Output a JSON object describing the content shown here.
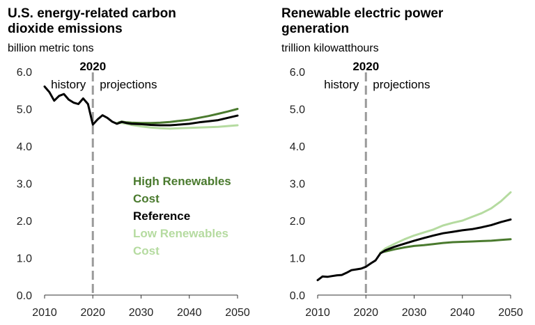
{
  "chart_data": [
    {
      "type": "line",
      "title": "U.S. energy-related carbon dioxide emissions",
      "title_lines": [
        "U.S. energy-related carbon",
        "dioxide emissions"
      ],
      "ylabel": "billion metric tons",
      "xlim": [
        2010,
        2050
      ],
      "ylim": [
        0,
        6
      ],
      "yticks": [
        "0.0",
        "1.0",
        "2.0",
        "3.0",
        "4.0",
        "5.0",
        "6.0"
      ],
      "xticks": [
        "2010",
        "2020",
        "2030",
        "2040",
        "2050"
      ],
      "marker_year": "2020",
      "marker_x": 2020,
      "history_label": "history",
      "projection_label": "projections",
      "legend": [
        {
          "lines": [
            "High Renewables",
            "Cost"
          ],
          "color": "#4a7a2e"
        },
        {
          "lines": [
            "Reference"
          ],
          "color": "#000000"
        },
        {
          "lines": [
            "Low Renewables",
            "Cost"
          ],
          "color": "#b5dba0"
        }
      ],
      "series": [
        {
          "name": "High Renewables Cost",
          "color": "#4a7a2e",
          "x": [
            2025,
            2026,
            2027,
            2028,
            2030,
            2032,
            2034,
            2036,
            2038,
            2040,
            2042,
            2044,
            2046,
            2048,
            2050
          ],
          "values": [
            4.62,
            4.66,
            4.64,
            4.63,
            4.62,
            4.62,
            4.63,
            4.65,
            4.68,
            4.71,
            4.76,
            4.81,
            4.87,
            4.93,
            5.0
          ]
        },
        {
          "name": "Low Renewables Cost",
          "color": "#b5dba0",
          "x": [
            2025,
            2026,
            2027,
            2028,
            2030,
            2032,
            2034,
            2036,
            2038,
            2040,
            2042,
            2044,
            2046,
            2048,
            2050
          ],
          "values": [
            4.62,
            4.62,
            4.6,
            4.57,
            4.53,
            4.5,
            4.48,
            4.47,
            4.48,
            4.49,
            4.5,
            4.51,
            4.52,
            4.54,
            4.56
          ]
        },
        {
          "name": "Reference",
          "color": "#000000",
          "x": [
            2010,
            2011,
            2012,
            2013,
            2014,
            2015,
            2016,
            2017,
            2018,
            2019,
            2020,
            2021,
            2022,
            2023,
            2024,
            2025,
            2026,
            2027,
            2028,
            2030,
            2032,
            2034,
            2036,
            2038,
            2040,
            2042,
            2044,
            2046,
            2048,
            2050
          ],
          "values": [
            5.6,
            5.45,
            5.22,
            5.35,
            5.4,
            5.25,
            5.17,
            5.13,
            5.28,
            5.13,
            4.58,
            4.72,
            4.83,
            4.76,
            4.66,
            4.6,
            4.65,
            4.62,
            4.6,
            4.59,
            4.57,
            4.56,
            4.56,
            4.58,
            4.6,
            4.64,
            4.67,
            4.7,
            4.76,
            4.82
          ]
        }
      ]
    },
    {
      "type": "line",
      "title": "Renewable electric power generation",
      "title_lines": [
        "Renewable electric power",
        "generation"
      ],
      "ylabel": "trillion kilowatthours",
      "xlim": [
        2010,
        2050
      ],
      "ylim": [
        0,
        6
      ],
      "yticks": [
        "0.0",
        "1.0",
        "2.0",
        "3.0",
        "4.0",
        "5.0",
        "6.0"
      ],
      "xticks": [
        "2010",
        "2020",
        "2030",
        "2040",
        "2050"
      ],
      "marker_year": "2020",
      "marker_x": 2020,
      "history_label": "history",
      "projection_label": "projections",
      "series": [
        {
          "name": "High Renewables Cost",
          "color": "#4a7a2e",
          "x": [
            2023,
            2024,
            2026,
            2028,
            2030,
            2032,
            2034,
            2036,
            2038,
            2040,
            2042,
            2044,
            2046,
            2048,
            2050
          ],
          "values": [
            1.14,
            1.17,
            1.23,
            1.28,
            1.32,
            1.34,
            1.37,
            1.4,
            1.42,
            1.43,
            1.44,
            1.45,
            1.46,
            1.48,
            1.5
          ]
        },
        {
          "name": "Low Renewables Cost",
          "color": "#b5dba0",
          "x": [
            2023,
            2024,
            2026,
            2028,
            2030,
            2032,
            2034,
            2036,
            2038,
            2040,
            2042,
            2044,
            2046,
            2048,
            2050
          ],
          "values": [
            1.14,
            1.25,
            1.38,
            1.5,
            1.6,
            1.68,
            1.76,
            1.87,
            1.94,
            2.0,
            2.1,
            2.2,
            2.33,
            2.52,
            2.76
          ]
        },
        {
          "name": "Reference",
          "color": "#000000",
          "x": [
            2010,
            2011,
            2012,
            2013,
            2014,
            2015,
            2016,
            2017,
            2018,
            2019,
            2020,
            2021,
            2022,
            2023,
            2024,
            2026,
            2028,
            2030,
            2032,
            2034,
            2036,
            2038,
            2040,
            2042,
            2044,
            2046,
            2048,
            2050
          ],
          "values": [
            0.4,
            0.5,
            0.49,
            0.51,
            0.53,
            0.54,
            0.6,
            0.67,
            0.69,
            0.71,
            0.76,
            0.85,
            0.93,
            1.12,
            1.2,
            1.3,
            1.38,
            1.46,
            1.53,
            1.6,
            1.66,
            1.7,
            1.74,
            1.77,
            1.82,
            1.88,
            1.96,
            2.03
          ]
        }
      ]
    }
  ]
}
